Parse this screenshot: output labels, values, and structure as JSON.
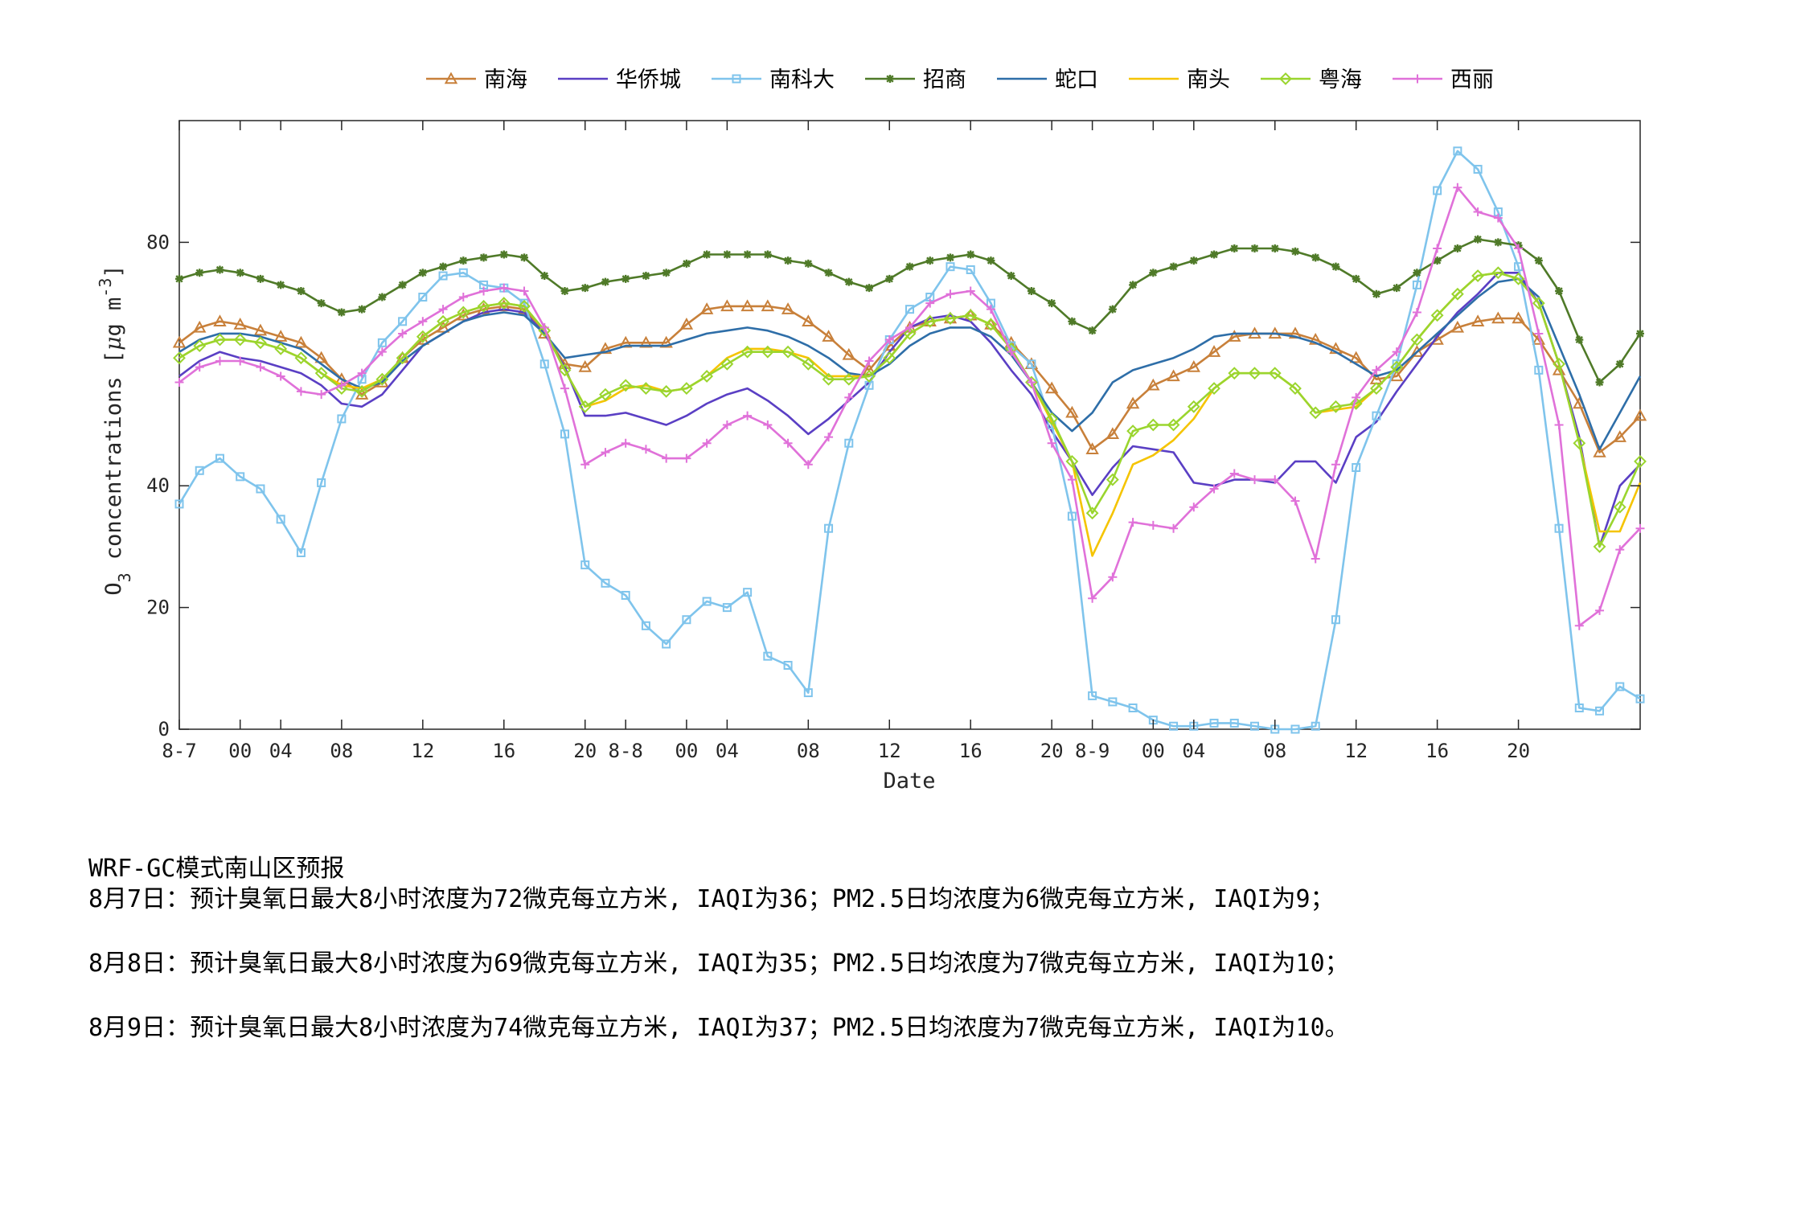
{
  "chart_data": {
    "type": "line",
    "xlabel": "Date",
    "ylabel": "O3 concentrations [μg m-3]",
    "ylabel_parts": {
      "main": "O",
      "sub": "3",
      "rest": " concentrations [",
      "mu": "μ",
      "unit": "g m",
      "sup": "-3",
      "close": "]"
    },
    "ylim": [
      0,
      100
    ],
    "yticks": [
      0,
      20,
      40,
      80
    ],
    "xlim": [
      0,
      72
    ],
    "xticks": [
      {
        "x": 0,
        "label": "8-7"
      },
      {
        "x": 3,
        "label": "00"
      },
      {
        "x": 5,
        "label": "04"
      },
      {
        "x": 8,
        "label": "08"
      },
      {
        "x": 12,
        "label": "12"
      },
      {
        "x": 16,
        "label": "16"
      },
      {
        "x": 20,
        "label": "20"
      },
      {
        "x": 22,
        "label": "8-8"
      },
      {
        "x": 25,
        "label": "00"
      },
      {
        "x": 27,
        "label": "04"
      },
      {
        "x": 31,
        "label": "08"
      },
      {
        "x": 35,
        "label": "12"
      },
      {
        "x": 39,
        "label": "16"
      },
      {
        "x": 43,
        "label": "20"
      },
      {
        "x": 45,
        "label": "8-9"
      },
      {
        "x": 48,
        "label": "00"
      },
      {
        "x": 50,
        "label": "04"
      },
      {
        "x": 54,
        "label": "08"
      },
      {
        "x": 58,
        "label": "12"
      },
      {
        "x": 62,
        "label": "16"
      },
      {
        "x": 66,
        "label": "20"
      }
    ],
    "grid": false,
    "legend_position": "top",
    "series": [
      {
        "name": "南海",
        "color": "#c8803a",
        "marker": "triangle",
        "values": [
          63.5,
          66,
          67,
          66.5,
          65.5,
          64.5,
          63.5,
          61,
          57.5,
          55,
          57,
          61,
          64,
          66,
          68,
          69,
          69.5,
          69,
          65,
          60,
          59.5,
          62.5,
          63.5,
          63.5,
          63.5,
          66.5,
          69,
          69.5,
          69.5,
          69.5,
          69,
          67,
          64.5,
          61.5,
          59,
          63,
          66,
          67,
          67.5,
          68,
          66.5,
          63.5,
          60,
          56,
          52,
          46,
          48.5,
          53.5,
          56.5,
          58,
          59.5,
          62,
          64.5,
          65,
          65,
          65,
          64,
          62.5,
          61,
          57.5,
          58,
          62,
          64,
          66,
          67,
          67.5,
          67.5,
          64,
          59,
          53.5,
          45.5,
          48,
          51.5
        ]
      },
      {
        "name": "华侨城",
        "color": "#5a3fc4",
        "marker": "none",
        "values": [
          58,
          60.5,
          62,
          61,
          60.5,
          59.5,
          58.5,
          56.5,
          53.5,
          53,
          55,
          59,
          63,
          65,
          67,
          68.5,
          69,
          68.5,
          65,
          59.5,
          51.5,
          51.5,
          52,
          51,
          50,
          51.5,
          53.5,
          55,
          56,
          54,
          51.5,
          48.5,
          51,
          54,
          57,
          62,
          66,
          67.5,
          68,
          67,
          63.5,
          59,
          55,
          49,
          44,
          38.5,
          43,
          46.5,
          46,
          45.5,
          40.5,
          40,
          41,
          41,
          40.5,
          44,
          44,
          40.5,
          48,
          50.5,
          55.5,
          60,
          64.5,
          68.5,
          71.5,
          75,
          75,
          70,
          60,
          48,
          30,
          40,
          43.5
        ]
      },
      {
        "name": "南科大",
        "color": "#7fc4ec",
        "marker": "square",
        "values": [
          37,
          42.5,
          44.5,
          41.5,
          39.5,
          34.5,
          29,
          40.5,
          51,
          57.5,
          63.5,
          67,
          71,
          74.5,
          75,
          73,
          72.5,
          70,
          60,
          48.5,
          27,
          24,
          22,
          17,
          14,
          18,
          21,
          20,
          22.5,
          12,
          10.5,
          6,
          33,
          47,
          56.5,
          64,
          69,
          71,
          76,
          75.5,
          70,
          63,
          60,
          50,
          35,
          5.5,
          4.5,
          3.5,
          1.5,
          0.5,
          0.5,
          1,
          1,
          0.5,
          0,
          0,
          0.5,
          18,
          43,
          51.5,
          60,
          73,
          88.5,
          95,
          92,
          85,
          76,
          59,
          33,
          3.5,
          3,
          7,
          5
        ]
      },
      {
        "name": "招商",
        "color": "#4f7a28",
        "marker": "star",
        "values": [
          74,
          75,
          75.5,
          75,
          74,
          73,
          72,
          70,
          68.5,
          69,
          71,
          73,
          75,
          76,
          77,
          77.5,
          78,
          77.5,
          74.5,
          72,
          72.5,
          73.5,
          74,
          74.5,
          75,
          76.5,
          78,
          78,
          78,
          78,
          77,
          76.5,
          75,
          73.5,
          72.5,
          74,
          76,
          77,
          77.5,
          78,
          77,
          74.5,
          72,
          70,
          67,
          65.5,
          69,
          73,
          75,
          76,
          77,
          78,
          79,
          79,
          79,
          78.5,
          77.5,
          76,
          74,
          71.5,
          72.5,
          75,
          77,
          79,
          80.5,
          80,
          79.5,
          77,
          72,
          64,
          57,
          60,
          65
        ]
      },
      {
        "name": "蛇口",
        "color": "#2e6ea8",
        "marker": "none",
        "values": [
          62,
          64,
          65,
          65,
          64.5,
          63.5,
          62.5,
          60,
          57.5,
          56,
          57,
          60.5,
          63,
          65,
          67,
          68,
          68.5,
          68,
          65,
          61,
          61.5,
          62,
          63,
          63,
          63,
          64,
          65,
          65.5,
          66,
          65.5,
          64.5,
          63,
          61,
          58.5,
          58,
          60,
          63,
          65,
          66,
          66,
          64.5,
          61.5,
          57,
          52,
          49,
          52,
          57,
          59,
          60,
          61,
          62.5,
          64.5,
          65,
          65,
          65,
          64.5,
          63.5,
          62,
          60,
          58,
          59,
          62,
          65,
          68,
          71,
          73.5,
          74,
          71,
          63,
          55,
          46,
          52,
          58
        ]
      },
      {
        "name": "南头",
        "color": "#f5c400",
        "marker": "none",
        "values": [
          61,
          63,
          64,
          64,
          63.5,
          62.5,
          61,
          58.5,
          56.5,
          56,
          57.5,
          61,
          64.5,
          67,
          68.5,
          69.5,
          70,
          69.5,
          65.5,
          59,
          53,
          54,
          56,
          56.5,
          55.5,
          56,
          58,
          61,
          62.5,
          62.5,
          62,
          61,
          58,
          58,
          58,
          61,
          65,
          67,
          67.5,
          68,
          66.5,
          62.5,
          57,
          50.5,
          44,
          28.5,
          35.5,
          43.5,
          45,
          47.5,
          51,
          56,
          58.5,
          58.5,
          58.5,
          56,
          52,
          52.5,
          53,
          56,
          59.5,
          64,
          68,
          71.5,
          74.5,
          75,
          74,
          70,
          60,
          47,
          32.5,
          32.5,
          40.5
        ]
      },
      {
        "name": "粤海",
        "color": "#9ad52e",
        "marker": "diamond",
        "values": [
          61,
          63,
          64,
          64,
          63.5,
          62.5,
          61,
          58.5,
          56,
          55.5,
          57.5,
          61,
          64.5,
          67,
          68.5,
          69.5,
          70,
          69.5,
          65.5,
          59,
          53,
          55,
          56.5,
          56,
          55.5,
          56,
          58,
          60,
          62,
          62,
          62,
          60,
          57.5,
          57.5,
          58,
          61,
          65,
          67,
          67.5,
          68,
          66.5,
          62.5,
          57,
          51,
          44,
          35.5,
          41,
          49,
          50,
          50,
          53,
          56,
          58.5,
          58.5,
          58.5,
          56,
          52,
          53,
          53.5,
          56,
          59.5,
          64,
          68,
          71.5,
          74.5,
          75,
          74,
          70,
          60,
          47,
          30,
          36.5,
          44
        ]
      },
      {
        "name": "西丽",
        "color": "#e071d9",
        "marker": "plus",
        "values": [
          57,
          59.5,
          60.5,
          60.5,
          59.5,
          58,
          55.5,
          55,
          56.5,
          58.5,
          62,
          65,
          67,
          69,
          71,
          72,
          72.5,
          72,
          66,
          56,
          43.5,
          45.5,
          47,
          46,
          44.5,
          44.5,
          47,
          50,
          51.5,
          50,
          47,
          43.5,
          48,
          54.5,
          60.5,
          64,
          66,
          70,
          71.5,
          72,
          69,
          62,
          57,
          47,
          41,
          21.5,
          25,
          34,
          33.5,
          33,
          36.5,
          39.5,
          42,
          41,
          41,
          37.5,
          28,
          43.5,
          54.5,
          59,
          62,
          68.5,
          79,
          89,
          85,
          84,
          79,
          65,
          50,
          17,
          19.5,
          29.5,
          33
        ]
      }
    ]
  },
  "notes": {
    "title": "WRF-GC模式南山区预报",
    "lines": [
      "8月7日：预计臭氧日最大8小时浓度为72微克每立方米, IAQI为36；PM2.5日均浓度为6微克每立方米, IAQI为9；",
      "8月8日：预计臭氧日最大8小时浓度为69微克每立方米, IAQI为35；PM2.5日均浓度为7微克每立方米, IAQI为10；",
      "8月9日：预计臭氧日最大8小时浓度为74微克每立方米, IAQI为37；PM2.5日均浓度为7微克每立方米, IAQI为10。"
    ]
  }
}
